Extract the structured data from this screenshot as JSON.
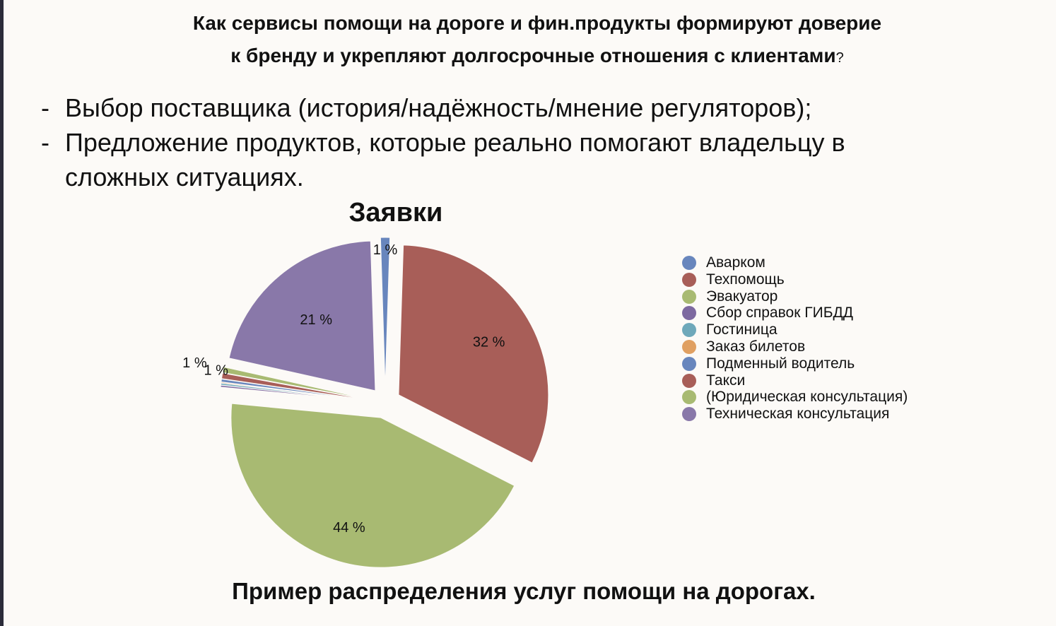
{
  "header": {
    "title_line1": "Как сервисы помощи на дороге и фин.продукты формируют доверие",
    "title_line2": "к бренду и укрепляют долгосрочные отношения с клиентами",
    "title_qmark": "?"
  },
  "bullets": [
    {
      "dash": "-",
      "text": "Выбор поставщика (история/надёжность/мнение регуляторов);"
    },
    {
      "dash": "-",
      "text": "Предложение продуктов, которые реально помогают владельцу в сложных ситуациях."
    }
  ],
  "chart_data": {
    "type": "pie",
    "title": "Заявки",
    "categories": [
      "Аварком",
      "Техпомощь",
      "Эвакуатор",
      "Сбор справок ГИБДД",
      "Гостиница",
      "Заказ билетов",
      "Подменный водитель",
      "Такси",
      "(Юридическая консультация)",
      "Техническая консультация"
    ],
    "values": [
      1,
      32,
      44,
      0.2,
      0.2,
      0.1,
      0.3,
      0.6,
      0.6,
      21
    ],
    "labels": [
      "1 %",
      "32 %",
      "44 %",
      "",
      "",
      "",
      "",
      "1 %",
      "1 %",
      "21 %"
    ],
    "colors": [
      "#6886bd",
      "#a85e58",
      "#a8ba72",
      "#7d69a0",
      "#6ea8ba",
      "#e0a062",
      "#6886bd",
      "#a85e58",
      "#a8ba72",
      "#8978a9"
    ],
    "exploded": true,
    "legend_position": "right"
  },
  "caption": "Пример распределения услуг помощи на дорогах."
}
